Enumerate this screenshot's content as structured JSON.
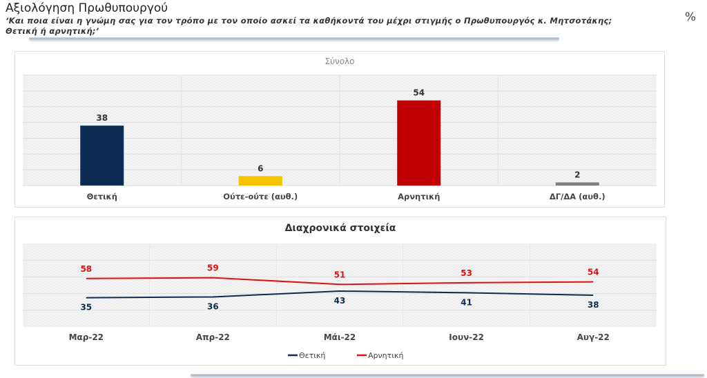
{
  "header": {
    "title": "Αξιολόγηση Πρωθυπουργού",
    "question_line1": "‘Και ποια είναι η γνώμη σας για τον τρόπο με τον οποίο ασκεί τα καθήκοντά του μέχρι στιγμής ο Πρωθυπουργός κ. Μητσοτάκης;",
    "question_line2": "Θετική ή αρνητική;’",
    "unit": "%"
  },
  "chart_data": [
    {
      "type": "bar",
      "title": "Σύνολο",
      "categories": [
        "Θετική",
        "Ούτε-ούτε (αυθ.)",
        "Αρνητική",
        "ΔΓ/ΔΑ (αυθ.)"
      ],
      "values": [
        38,
        6,
        54,
        2
      ],
      "colors": [
        "#0d2c54",
        "#f5c400",
        "#c00000",
        "#808080"
      ],
      "ylim": [
        0,
        70
      ],
      "grid": true
    },
    {
      "type": "line",
      "title": "Διαχρονικά στοιχεία",
      "categories": [
        "Μαρ-22",
        "Απρ-22",
        "Μάι-22",
        "Ιουν-22",
        "Αυγ-22"
      ],
      "series": [
        {
          "name": "Θετική",
          "values": [
            35,
            36,
            43,
            41,
            38
          ],
          "color": "#0d2c54"
        },
        {
          "name": "Αρνητική",
          "values": [
            58,
            59,
            51,
            53,
            54
          ],
          "color": "#e01010"
        }
      ],
      "ylim": [
        0,
        100
      ],
      "grid": true,
      "legend": "bottom"
    }
  ]
}
